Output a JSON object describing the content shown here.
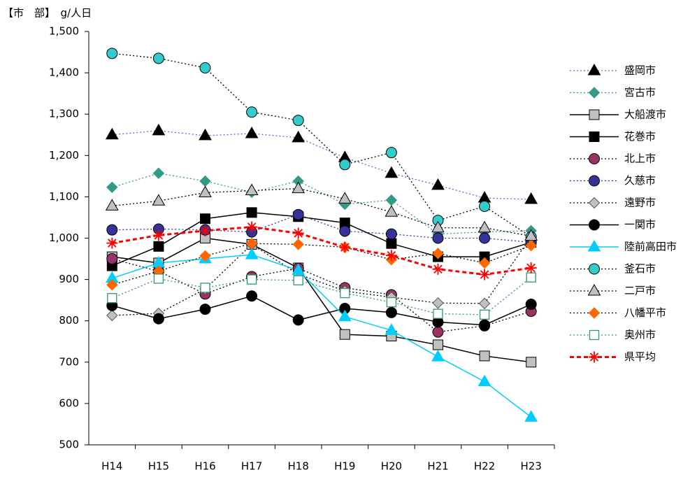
{
  "chart_data": {
    "type": "line",
    "title": "【市　部】　g/人日",
    "categories": [
      "H14",
      "H15",
      "H16",
      "H17",
      "H18",
      "H19",
      "H20",
      "H21",
      "H22",
      "H23"
    ],
    "ylim": [
      500,
      1500
    ],
    "yticks": [
      500,
      600,
      700,
      800,
      900,
      {
        "value": 1000,
        "label": "1,000"
      },
      {
        "value": 1100,
        "label": "1,100"
      },
      {
        "value": 1200,
        "label": "1,200"
      },
      {
        "value": 1300,
        "label": "1,300"
      },
      {
        "value": 1400,
        "label": "1,400"
      },
      {
        "value": 1500,
        "label": "1,500"
      }
    ],
    "series": [
      {
        "name": "盛岡市",
        "color": "#6666cc",
        "marker_color": "#000000",
        "marker": "triangle",
        "line_style": "dotted",
        "values": [
          1250,
          1260,
          1248,
          1253,
          1243,
          1195,
          1157,
          1128,
          1097,
          1094
        ]
      },
      {
        "name": "宮古市",
        "color": "#339988",
        "marker_color": "#339988",
        "marker": "diamond",
        "line_style": "dotted",
        "values": [
          1123,
          1157,
          1138,
          1111,
          1138,
          1082,
          1092,
          1010,
          1015,
          1018
        ]
      },
      {
        "name": "大船渡市",
        "color": "#000000",
        "marker_color": "#c0c0c0",
        "marker": "square",
        "line_style": "solid",
        "values": [
          955,
          940,
          1000,
          985,
          928,
          767,
          763,
          742,
          715,
          700
        ]
      },
      {
        "name": "花巻市",
        "color": "#000000",
        "marker_color": "#000000",
        "marker": "square",
        "line_style": "solid",
        "values": [
          933,
          980,
          1047,
          1062,
          1052,
          1037,
          987,
          955,
          955,
          990
        ]
      },
      {
        "name": "北上市",
        "color": "#000000",
        "marker_color": "#993366",
        "marker": "circle",
        "line_style": "dotted",
        "values": [
          950,
          920,
          865,
          907,
          927,
          880,
          863,
          773,
          788,
          823
        ]
      },
      {
        "name": "久慈市",
        "color": "#333399",
        "marker_color": "#333399",
        "marker": "circle",
        "line_style": "dotted",
        "values": [
          1020,
          1022,
          1020,
          1015,
          1057,
          1017,
          1010,
          1000,
          1000,
          990
        ]
      },
      {
        "name": "遠野市",
        "color": "#000000",
        "marker_color": "#c0c0c0",
        "marker": "diamond",
        "line_style": "dotted",
        "values": [
          813,
          818,
          877,
          985,
          913,
          872,
          857,
          843,
          842,
          1003
        ]
      },
      {
        "name": "一関市",
        "color": "#000000",
        "marker_color": "#000000",
        "marker": "circle",
        "line_style": "solid",
        "values": [
          837,
          805,
          828,
          860,
          802,
          830,
          820,
          797,
          790,
          840
        ]
      },
      {
        "name": "陸前高田市",
        "color": "#00ccff",
        "marker_color": "#00ccff",
        "marker": "triangle",
        "line_style": "solid",
        "values": [
          903,
          940,
          950,
          960,
          922,
          810,
          777,
          713,
          653,
          567
        ]
      },
      {
        "name": "釜石市",
        "color": "#000000",
        "marker_color": "#33cccc",
        "marker": "circle",
        "line_style": "dotted",
        "values": [
          1447,
          1435,
          1412,
          1305,
          1285,
          1178,
          1207,
          1043,
          1077,
          1003
        ]
      },
      {
        "name": "二戸市",
        "color": "#000000",
        "marker_color": "#c0c0c0",
        "marker": "triangle",
        "line_style": "dotted",
        "values": [
          1078,
          1090,
          1110,
          1115,
          1120,
          1095,
          1063,
          1025,
          1025,
          1005
        ]
      },
      {
        "name": "八幡平市",
        "color": "#000000",
        "marker_color": "#ff6600",
        "marker": "diamond",
        "line_style": "dotted",
        "values": [
          887,
          920,
          957,
          987,
          985,
          978,
          948,
          963,
          940,
          982
        ]
      },
      {
        "name": "奥州市",
        "color": "#339966",
        "marker_color": "#339966",
        "marker": "open-square",
        "line_style": "dotted",
        "values": [
          855,
          902,
          880,
          900,
          898,
          867,
          845,
          817,
          815,
          905
        ]
      },
      {
        "name": "県平均",
        "color": "#ff0000",
        "marker_color": "#ff0000",
        "marker": "star",
        "line_style": "dashed",
        "values": [
          988,
          1007,
          1018,
          1027,
          1012,
          978,
          958,
          925,
          912,
          928
        ]
      }
    ]
  }
}
